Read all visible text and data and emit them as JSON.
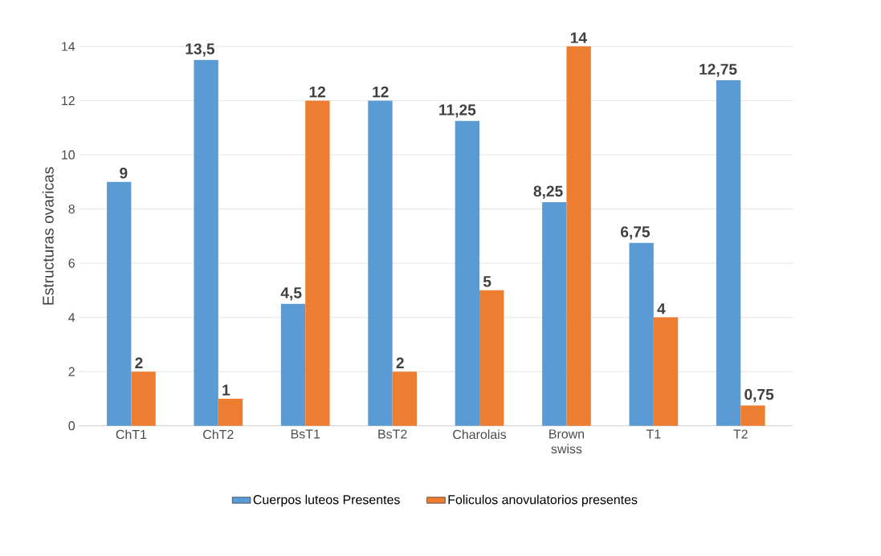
{
  "chart_data": {
    "type": "bar",
    "ylabel": "Estructuras ovaricas",
    "categories": [
      "ChT1",
      "ChT2",
      "BsT1",
      "BsT2",
      "Charolais",
      "Brown swiss",
      "T1",
      "T2"
    ],
    "series": [
      {
        "name": "Cuerpos luteos Presentes",
        "color": "#5b9bd5",
        "values": [
          9,
          13.5,
          4.5,
          12,
          11.25,
          8.25,
          6.75,
          12.75
        ],
        "value_labels": [
          "9",
          "13,5",
          "4,5",
          "12",
          "11,25",
          "8,25",
          "6,75",
          "12,75"
        ]
      },
      {
        "name": "Foliculos anovulatorios presentes",
        "color": "#ed7d31",
        "values": [
          2,
          1,
          12,
          2,
          5,
          14,
          4,
          0.75
        ],
        "value_labels": [
          "2",
          "1",
          "12",
          "2",
          "5",
          "14",
          "4",
          "0,75"
        ]
      }
    ],
    "ylim": [
      0,
      14
    ],
    "yticks": [
      0,
      2,
      4,
      6,
      8,
      10,
      12,
      14
    ],
    "grid": "y",
    "legend": "bottom"
  }
}
